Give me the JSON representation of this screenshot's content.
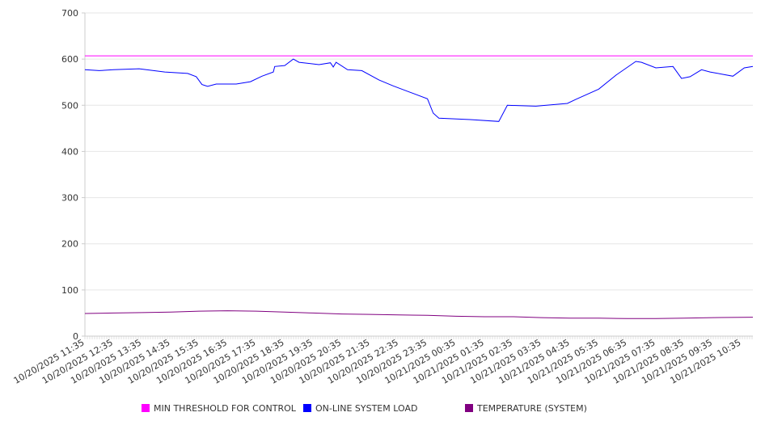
{
  "chart_data": {
    "type": "line",
    "title": "",
    "xlabel": "",
    "ylabel": "",
    "ylim": [
      0,
      700
    ],
    "yticks": [
      0,
      100,
      200,
      300,
      400,
      500,
      600,
      700
    ],
    "xlim_hours_from_start": [
      0,
      23.4
    ],
    "xtick_labels": [
      "10/20/2025 11:35",
      "10/20/2025 12:35",
      "10/20/2025 13:35",
      "10/20/2025 14:35",
      "10/20/2025 15:35",
      "10/20/2025 16:35",
      "10/20/2025 17:35",
      "10/20/2025 18:35",
      "10/20/2025 19:35",
      "10/20/2025 20:35",
      "10/20/2025 21:35",
      "10/20/2025 22:35",
      "10/20/2025 23:35",
      "10/21/2025 00:35",
      "10/21/2025 01:35",
      "10/21/2025 02:35",
      "10/21/2025 03:35",
      "10/21/2025 04:35",
      "10/21/2025 05:35",
      "10/21/2025 06:35",
      "10/21/2025 07:35",
      "10/21/2025 08:35",
      "10/21/2025 09:35",
      "10/21/2025 10:35"
    ],
    "grid": true,
    "legend_position": "bottom",
    "series": [
      {
        "name": "MIN THRESHOLD FOR CONTROL",
        "color": "#ff00ff",
        "x": [
          0,
          23.4
        ],
        "y": [
          607,
          607
        ]
      },
      {
        "name": "ON-LINE SYSTEM LOAD",
        "color": "#0000ff",
        "x": [
          0,
          0.5,
          1.0,
          1.9,
          2.8,
          3.6,
          3.9,
          4.1,
          4.3,
          4.6,
          5.3,
          5.8,
          6.2,
          6.6,
          6.65,
          7.0,
          7.3,
          7.5,
          8.2,
          8.6,
          8.7,
          8.8,
          9.2,
          9.7,
          10.3,
          10.8,
          11.4,
          12.0,
          12.2,
          12.4,
          13.5,
          14.5,
          14.8,
          15.8,
          16.9,
          17.2,
          18.0,
          18.6,
          19.3,
          19.5,
          20.0,
          20.6,
          20.9,
          21.2,
          21.6,
          21.9,
          22.7,
          23.1,
          23.4
        ],
        "y": [
          577,
          575,
          577,
          579,
          572,
          569,
          562,
          545,
          541,
          546,
          546,
          551,
          563,
          572,
          584,
          586,
          600,
          593,
          588,
          592,
          583,
          593,
          577,
          575,
          555,
          542,
          528,
          514,
          483,
          472,
          469,
          465,
          500,
          498,
          504,
          513,
          535,
          565,
          595,
          593,
          581,
          584,
          558,
          562,
          577,
          572,
          563,
          581,
          584
        ]
      },
      {
        "name": "TEMPERATURE (SYSTEM)",
        "color": "#800080",
        "x": [
          0,
          1,
          2,
          3,
          4,
          5,
          6,
          7,
          8,
          9,
          10,
          11,
          12,
          13,
          14,
          15,
          16,
          17,
          18,
          19,
          20,
          21,
          22,
          23.4
        ],
        "y": [
          49,
          50,
          51,
          52,
          54,
          55,
          54,
          52,
          50,
          48,
          47,
          46,
          45,
          43,
          42,
          42,
          40,
          39,
          39,
          38,
          38,
          39,
          40,
          41
        ]
      }
    ]
  }
}
